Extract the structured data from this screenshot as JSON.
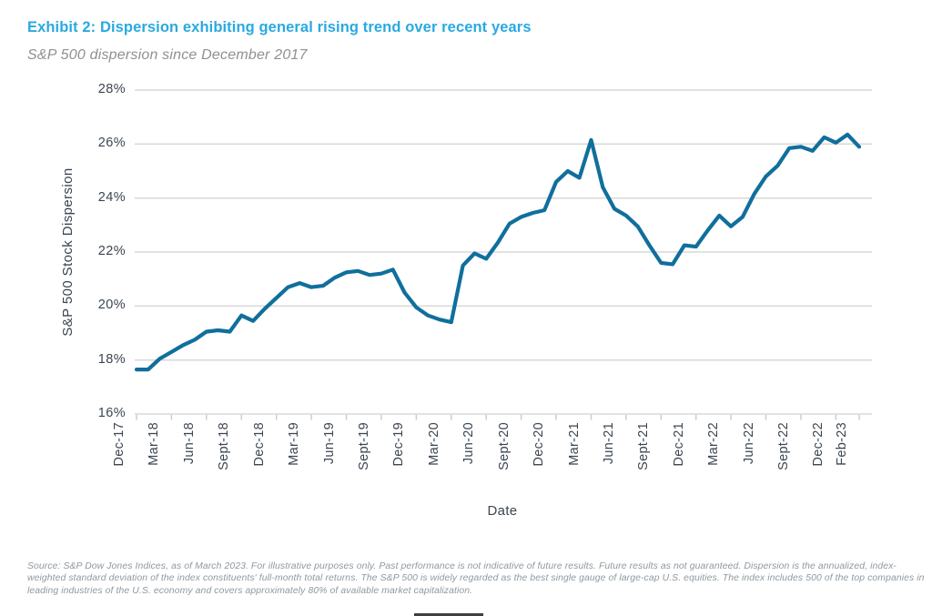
{
  "header": {
    "title": "Exhibit 2: Dispersion exhibiting general rising trend over recent years",
    "subtitle": "S&P 500 dispersion since December 2017"
  },
  "chart_data": {
    "type": "line",
    "xlabel": "Date",
    "ylabel": "S&P 500 Stock Dispersion",
    "ylim": [
      16,
      28
    ],
    "ytick_step": 2,
    "ytick_suffix": "%",
    "grid": "horizontal only",
    "legend": "none",
    "x": [
      "Dec-17",
      "Jan-18",
      "Feb-18",
      "Mar-18",
      "Apr-18",
      "May-18",
      "Jun-18",
      "Jul-18",
      "Aug-18",
      "Sept-18",
      "Oct-18",
      "Nov-18",
      "Dec-18",
      "Jan-19",
      "Feb-19",
      "Mar-19",
      "Apr-19",
      "May-19",
      "Jun-19",
      "Jul-19",
      "Aug-19",
      "Sept-19",
      "Oct-19",
      "Nov-19",
      "Dec-19",
      "Jan-20",
      "Feb-20",
      "Mar-20",
      "Apr-20",
      "May-20",
      "Jun-20",
      "Jul-20",
      "Aug-20",
      "Sept-20",
      "Oct-20",
      "Nov-20",
      "Dec-20",
      "Jan-21",
      "Feb-21",
      "Mar-21",
      "Apr-21",
      "May-21",
      "Jun-21",
      "Jul-21",
      "Aug-21",
      "Sept-21",
      "Oct-21",
      "Nov-21",
      "Dec-21",
      "Jan-22",
      "Feb-22",
      "Mar-22",
      "Apr-22",
      "May-22",
      "Jun-22",
      "Jul-22",
      "Aug-22",
      "Sept-22",
      "Oct-22",
      "Nov-22",
      "Dec-22",
      "Jan-23",
      "Feb-23"
    ],
    "series": [
      {
        "name": "S&P 500 Stock Dispersion",
        "color": "#106f9c",
        "values": [
          17.65,
          17.65,
          18.05,
          18.3,
          18.55,
          18.75,
          19.05,
          19.1,
          19.05,
          19.65,
          19.45,
          19.9,
          20.3,
          20.7,
          20.85,
          20.7,
          20.75,
          21.05,
          21.25,
          21.3,
          21.15,
          21.2,
          21.35,
          20.5,
          19.95,
          19.65,
          19.5,
          19.4,
          21.5,
          21.95,
          21.75,
          22.35,
          23.05,
          23.3,
          23.45,
          23.55,
          24.6,
          25.0,
          24.75,
          26.15,
          24.4,
          23.6,
          23.35,
          22.95,
          22.25,
          21.6,
          21.55,
          22.25,
          22.2,
          22.8,
          23.35,
          22.95,
          23.3,
          24.15,
          24.8,
          25.2,
          25.85,
          25.9,
          25.75,
          26.25,
          26.05,
          26.35,
          25.9
        ]
      }
    ],
    "xtick_labels": [
      "Dec-17",
      "Mar-18",
      "Jun-18",
      "Sept-18",
      "Dec-18",
      "Mar-19",
      "Jun-19",
      "Sept-19",
      "Dec-19",
      "Mar-20",
      "Jun-20",
      "Sept-20",
      "Dec-20",
      "Mar-21",
      "Jun-21",
      "Sept-21",
      "Dec-21",
      "Mar-22",
      "Jun-22",
      "Sept-22",
      "Dec-22",
      "Feb-23"
    ],
    "xtick_indices": [
      0,
      3,
      6,
      9,
      12,
      15,
      18,
      21,
      24,
      27,
      30,
      33,
      36,
      39,
      42,
      45,
      48,
      51,
      54,
      57,
      60,
      62
    ]
  },
  "footnote": "Source: S&P Dow Jones Indices, as of March 2023. For illustrative purposes only. Past performance is not indicative of future results. Future results as not guaranteed. Dispersion is the annualized, index-weighted standard deviation of the index constituents' full-month total returns. The S&P 500 is widely regarded as the best single gauge of large-cap U.S. equities. The index includes 500 of the top companies in leading industries of the U.S. economy and covers approximately 80% of available market capitalization.",
  "colors": {
    "line": "#106f9c",
    "title": "#29a9e1",
    "subtitle": "#8f9094",
    "axis_text": "#3b4551",
    "gridline": "#d8d8d8",
    "tick": "#cccccc",
    "footnote": "#8e99a0"
  }
}
